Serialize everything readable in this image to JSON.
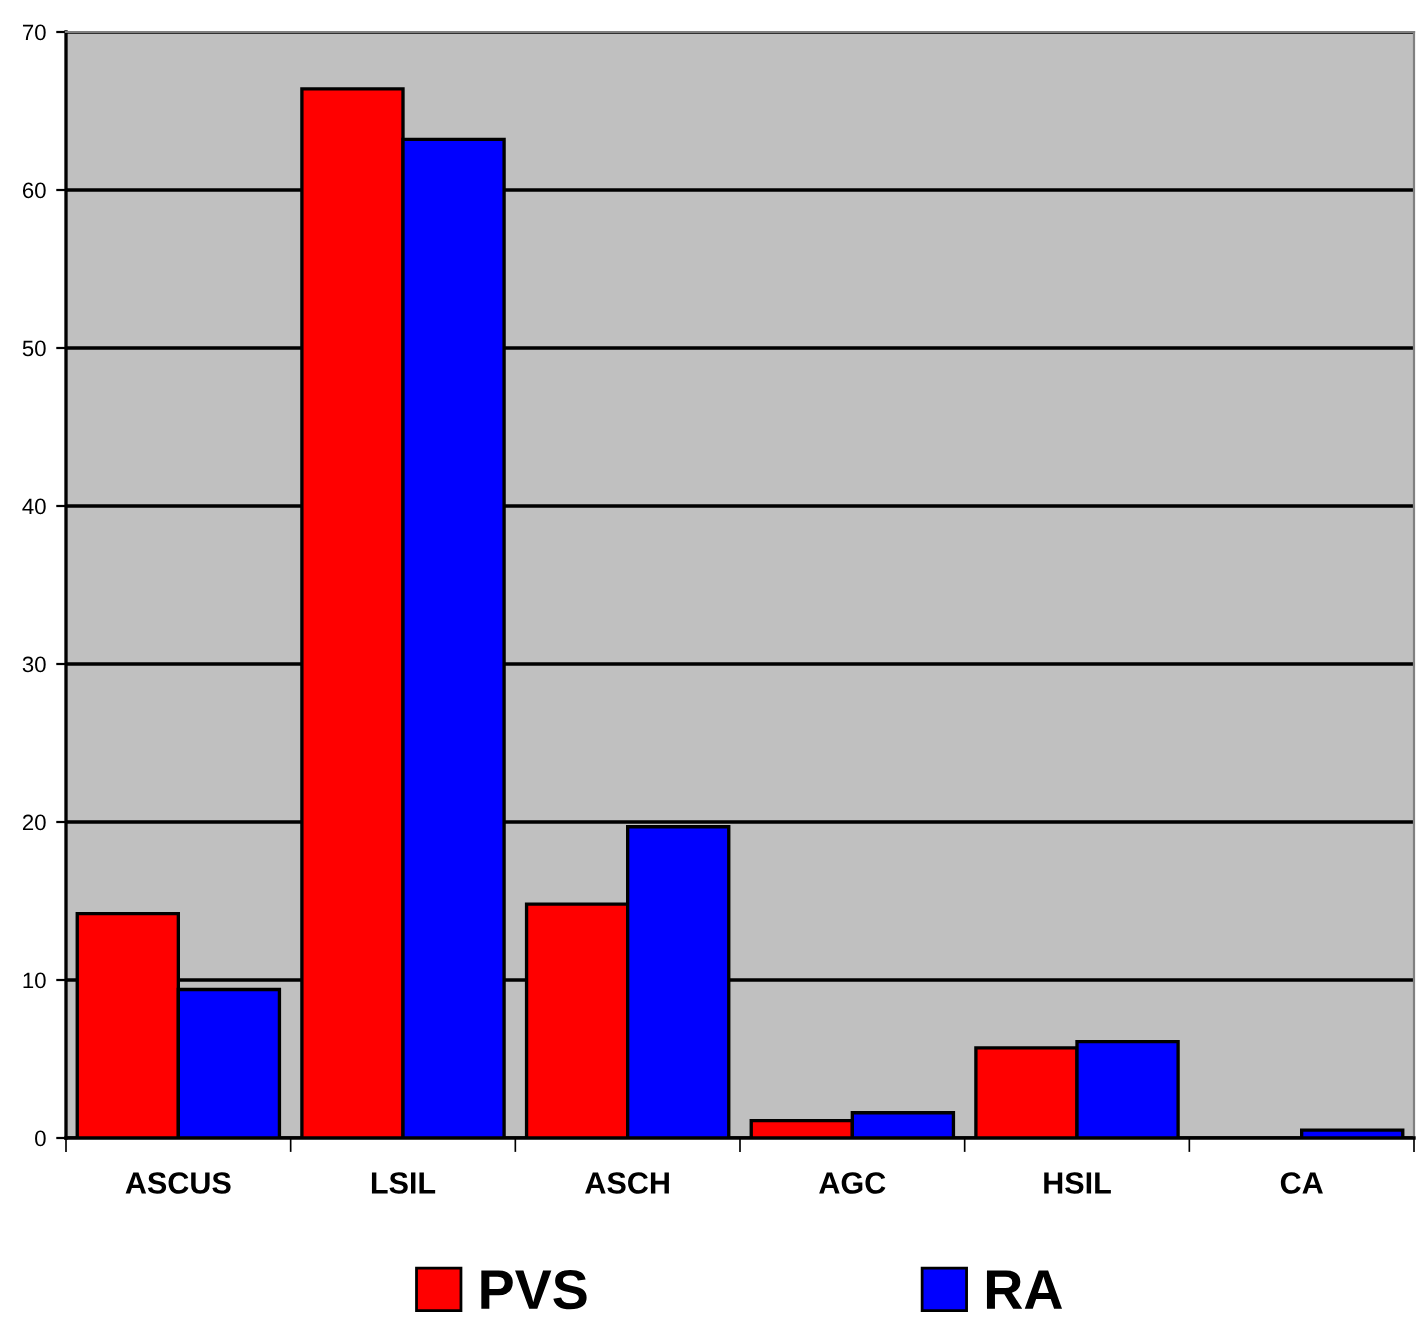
{
  "chart_data": {
    "type": "bar",
    "categories": [
      "ASCUS",
      "LSIL",
      "ASCH",
      "AGC",
      "HSIL",
      "CA"
    ],
    "series": [
      {
        "name": "PVS",
        "color": "#ff0000",
        "values": [
          14.2,
          66.4,
          14.8,
          1.1,
          5.7,
          0
        ]
      },
      {
        "name": "RA",
        "color": "#0000ff",
        "values": [
          9.4,
          63.2,
          19.7,
          1.6,
          6.1,
          0.5
        ]
      }
    ],
    "ylim": [
      0,
      70
    ],
    "yticks": [
      0,
      10,
      20,
      30,
      40,
      50,
      60,
      70
    ],
    "grid": "y",
    "legend": "bottom"
  }
}
